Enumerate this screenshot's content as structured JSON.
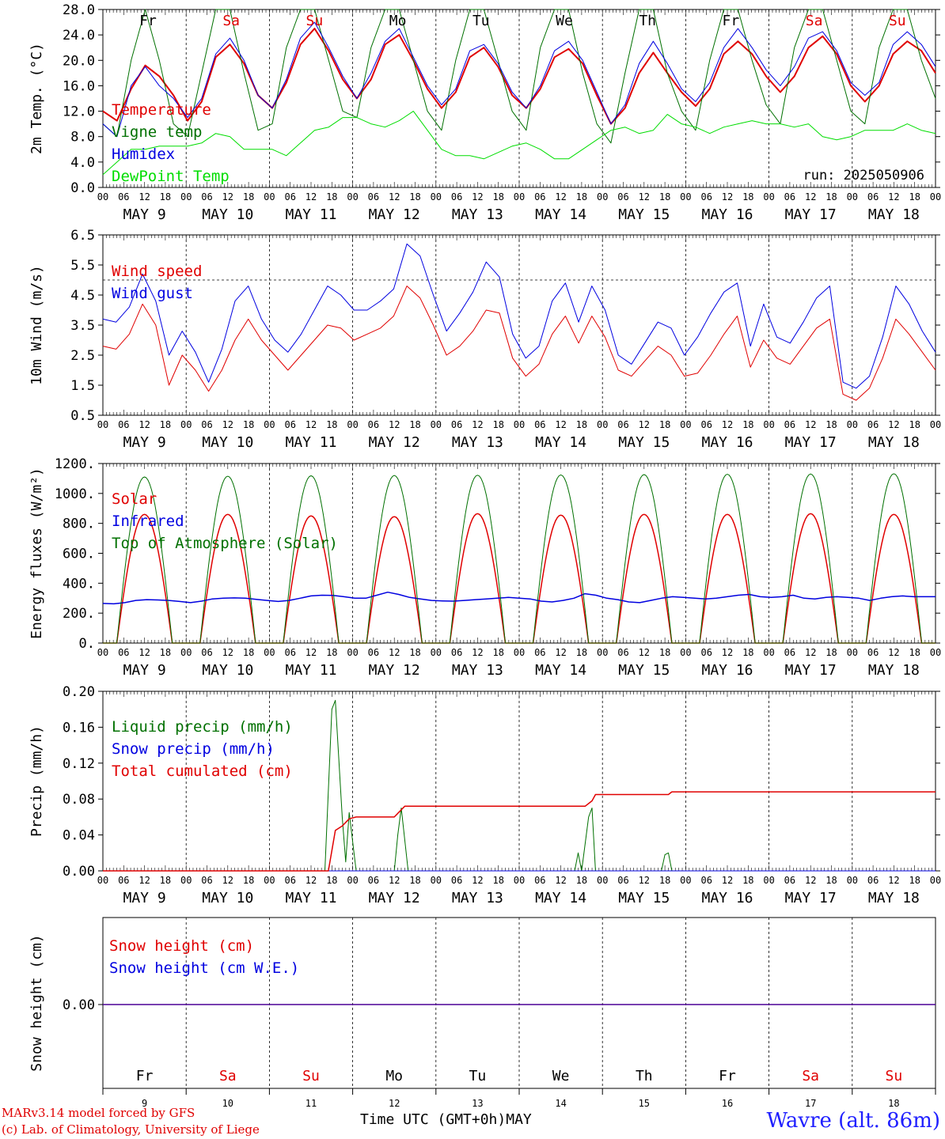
{
  "chart_data": [
    {
      "type": "line",
      "ylabel": "2m Temp. (°C)",
      "ylim": [
        0,
        28
      ],
      "yticks": [
        "0.0",
        "4.0",
        "8.0",
        "12.0",
        "16.0",
        "20.0",
        "24.0",
        "28.0"
      ],
      "xlim": [
        0,
        240
      ],
      "x_step_hours": 6,
      "annotation": "run: 2025050906",
      "legend_position": "left",
      "series": [
        {
          "name": "Temperature",
          "color": "#e00000",
          "width": 2,
          "values": [
            12,
            10.5,
            15.5,
            19.2,
            17.5,
            14.5,
            10.5,
            13.5,
            20.5,
            22.5,
            19.5,
            14.5,
            12.5,
            16.5,
            22.5,
            25,
            21.5,
            17,
            14,
            17,
            22.5,
            24,
            20,
            15.5,
            12.5,
            15,
            20.5,
            22,
            19,
            14.5,
            12.5,
            15.5,
            20.5,
            21.8,
            19.5,
            14.5,
            10,
            12.5,
            18,
            21.2,
            18,
            15,
            12.8,
            15.5,
            21,
            23,
            21,
            17.5,
            15,
            17.5,
            22,
            23.8,
            21,
            16,
            13.5,
            16,
            21,
            23,
            21.5,
            18
          ]
        },
        {
          "name": "Vigne temp",
          "color": "#007000",
          "width": 1,
          "values": [
            10,
            8,
            20,
            28,
            20,
            10,
            8,
            18,
            28,
            28,
            18,
            9,
            10,
            22,
            28,
            28,
            20,
            12,
            11,
            22,
            28,
            28,
            20,
            12,
            9,
            20,
            28,
            28,
            20,
            12,
            9,
            22,
            28,
            28,
            18,
            10,
            7,
            18,
            28,
            28,
            18,
            12,
            9,
            20,
            28,
            28,
            20,
            13,
            10,
            22,
            28,
            28,
            20,
            12,
            10,
            22,
            28,
            28,
            20,
            14
          ]
        },
        {
          "name": "Humidex",
          "color": "#0000e0",
          "width": 1,
          "values": [
            10,
            8,
            16,
            19,
            16,
            14,
            11,
            14,
            21,
            23.5,
            20,
            14.5,
            12.5,
            17,
            23.5,
            26,
            22,
            17.5,
            14,
            18,
            23,
            25,
            20.5,
            16,
            13,
            15.5,
            21.5,
            22.5,
            19.5,
            15,
            12.5,
            16,
            21.5,
            23,
            20,
            15,
            10,
            13,
            19.5,
            23,
            19.5,
            15.5,
            13.5,
            16.5,
            22,
            25,
            22,
            18.5,
            16,
            19,
            23.5,
            24.5,
            21.5,
            16.5,
            14.5,
            16.5,
            22.5,
            24.5,
            22.5,
            19
          ]
        },
        {
          "name": "DewPoint Temp",
          "color": "#00dd00",
          "width": 1,
          "values": [
            2,
            4,
            6,
            6,
            6.5,
            6.5,
            6.5,
            7,
            8.5,
            8,
            6,
            6,
            6,
            5,
            7,
            9,
            9.5,
            11,
            11,
            10,
            9.5,
            10.5,
            12,
            9,
            6,
            5,
            5,
            4.5,
            5.5,
            6.5,
            7,
            6,
            4.5,
            4.5,
            6,
            7.5,
            9,
            9.5,
            8.5,
            9,
            11.5,
            10,
            9.5,
            8.5,
            9.5,
            10,
            10.5,
            10,
            10,
            9.5,
            10,
            8,
            7.5,
            8,
            9,
            9,
            9,
            10,
            9,
            8.5
          ]
        }
      ]
    },
    {
      "type": "line",
      "ylabel": "10m Wind (m/s)",
      "ylim": [
        0.5,
        6.5
      ],
      "yticks": [
        "0.5",
        "1.5",
        "2.5",
        "3.5",
        "4.5",
        "5.5",
        "6.5"
      ],
      "reference_line": 5.0,
      "xlim": [
        0,
        240
      ],
      "x_step_hours": 6,
      "legend_position": "left",
      "series": [
        {
          "name": "Wind speed",
          "color": "#e00000",
          "width": 1,
          "values": [
            2.8,
            2.7,
            3.2,
            4.2,
            3.5,
            1.5,
            2.5,
            2.0,
            1.3,
            2.0,
            3.0,
            3.7,
            3.0,
            2.5,
            2.0,
            2.5,
            3.0,
            3.5,
            3.4,
            3.0,
            3.2,
            3.4,
            3.8,
            4.8,
            4.4,
            3.5,
            2.5,
            2.8,
            3.3,
            4.0,
            3.9,
            2.4,
            1.8,
            2.2,
            3.2,
            3.8,
            2.9,
            3.8,
            3.1,
            2.0,
            1.8,
            2.3,
            2.8,
            2.5,
            1.8,
            1.9,
            2.5,
            3.2,
            3.8,
            2.1,
            3.0,
            2.4,
            2.2,
            2.8,
            3.4,
            3.7,
            1.2,
            1.0,
            1.4,
            2.4,
            3.7,
            3.2,
            2.6,
            2.0
          ]
        },
        {
          "name": "Wind gust",
          "color": "#0000e0",
          "width": 1,
          "values": [
            3.7,
            3.6,
            4.1,
            5.2,
            4.3,
            2.5,
            3.3,
            2.6,
            1.6,
            2.7,
            4.3,
            4.8,
            3.7,
            3.0,
            2.6,
            3.2,
            4.0,
            4.8,
            4.5,
            4.0,
            4.0,
            4.3,
            4.7,
            6.2,
            5.8,
            4.5,
            3.3,
            3.9,
            4.6,
            5.6,
            5.1,
            3.2,
            2.4,
            2.8,
            4.3,
            4.9,
            3.6,
            4.8,
            4.0,
            2.5,
            2.2,
            2.9,
            3.6,
            3.4,
            2.5,
            3.1,
            3.9,
            4.6,
            4.9,
            2.8,
            4.2,
            3.1,
            2.9,
            3.6,
            4.4,
            4.8,
            1.6,
            1.4,
            1.8,
            3.1,
            4.8,
            4.2,
            3.3,
            2.6
          ]
        }
      ]
    },
    {
      "type": "line",
      "ylabel": "Energy fluxes (W/m²)",
      "ylim": [
        0,
        1200
      ],
      "yticks": [
        "0.",
        "200.",
        "400.",
        "600.",
        "800.",
        "1000.",
        "1200."
      ],
      "xlim": [
        0,
        240
      ],
      "x_step_hours": 6,
      "legend_position": "left",
      "series": [
        {
          "name": "Solar",
          "color": "#e00000",
          "width": 1.5,
          "daily_peak": [
            860,
            860,
            850,
            845,
            865,
            855,
            860,
            860,
            865,
            860
          ]
        },
        {
          "name": "Infrared",
          "color": "#0000e0",
          "width": 1.5,
          "values": [
            265,
            262,
            270,
            285,
            290,
            288,
            285,
            278,
            270,
            280,
            295,
            300,
            302,
            300,
            292,
            285,
            278,
            285,
            300,
            315,
            320,
            318,
            310,
            300,
            300,
            320,
            340,
            325,
            305,
            295,
            285,
            282,
            280,
            285,
            290,
            295,
            300,
            305,
            300,
            295,
            280,
            275,
            285,
            300,
            330,
            320,
            300,
            290,
            275,
            270,
            285,
            300,
            310,
            305,
            300,
            295,
            300,
            310,
            320,
            325,
            310,
            305,
            310,
            320,
            300,
            295,
            305,
            310,
            305,
            300,
            285,
            300,
            310,
            315,
            310,
            310,
            310
          ]
        },
        {
          "name": "Top of Atmosphere (Solar)",
          "color": "#007000",
          "width": 1,
          "daily_peak": [
            1110,
            1115,
            1118,
            1120,
            1122,
            1124,
            1126,
            1128,
            1130,
            1132
          ]
        }
      ]
    },
    {
      "type": "line",
      "ylabel": "Precip (mm/h)",
      "ylim": [
        0,
        0.2
      ],
      "yticks": [
        "0.00",
        "0.04",
        "0.08",
        "0.12",
        "0.16",
        "0.20"
      ],
      "xlim": [
        0,
        240
      ],
      "x_step_hours": 6,
      "legend_position": "left",
      "series": [
        {
          "name": "Liquid precip (mm/h)",
          "color": "#007000",
          "width": 1,
          "points": [
            [
              0,
              0
            ],
            [
              64,
              0
            ],
            [
              66,
              0.18
            ],
            [
              67,
              0.19
            ],
            [
              69,
              0.06
            ],
            [
              70,
              0.01
            ],
            [
              71,
              0.065
            ],
            [
              73,
              0
            ],
            [
              84,
              0
            ],
            [
              85,
              0.04
            ],
            [
              86,
              0.07
            ],
            [
              88,
              0
            ],
            [
              136,
              0
            ],
            [
              137,
              0.02
            ],
            [
              138,
              0
            ],
            [
              140,
              0.06
            ],
            [
              141,
              0.07
            ],
            [
              142,
              0
            ],
            [
              161,
              0
            ],
            [
              162,
              0.018
            ],
            [
              163,
              0.02
            ],
            [
              164,
              0
            ],
            [
              240,
              0
            ]
          ]
        },
        {
          "name": "Snow precip (mm/h)",
          "color": "#0000e0",
          "width": 1,
          "points": [
            [
              0,
              0
            ],
            [
              240,
              0
            ]
          ]
        },
        {
          "name": "Total cumulated (cm)",
          "color": "#e00000",
          "width": 1.5,
          "points": [
            [
              0,
              0
            ],
            [
              65,
              0
            ],
            [
              67,
              0.045
            ],
            [
              69,
              0.05
            ],
            [
              71,
              0.058
            ],
            [
              73,
              0.06
            ],
            [
              84,
              0.06
            ],
            [
              86,
              0.068
            ],
            [
              87,
              0.072
            ],
            [
              88,
              0.072
            ],
            [
              139,
              0.072
            ],
            [
              141,
              0.078
            ],
            [
              142,
              0.085
            ],
            [
              163,
              0.085
            ],
            [
              164,
              0.088
            ],
            [
              240,
              0.088
            ]
          ]
        }
      ]
    },
    {
      "type": "line",
      "ylabel": "Snow height (cm)",
      "yticks": [
        "0.00"
      ],
      "xlim": [
        0,
        240
      ],
      "legend_position": "left",
      "series": [
        {
          "name": "Snow height (cm)",
          "color": "#e00000",
          "width": 1.5,
          "values": [
            0,
            0
          ]
        },
        {
          "name": "Snow height (cm W.E.)",
          "color": "#0000e0",
          "width": 1,
          "values": [
            0,
            0
          ]
        }
      ]
    }
  ],
  "x_axis": {
    "hour_ticks": [
      "00",
      "06",
      "12",
      "18"
    ],
    "day_labels": [
      "MAY  9",
      "MAY 10",
      "MAY 11",
      "MAY 12",
      "MAY 13",
      "MAY 14",
      "MAY 15",
      "MAY 16",
      "MAY 17",
      "MAY 18"
    ],
    "weekdays": [
      "Fr",
      "Sa",
      "Su",
      "Mo",
      "Tu",
      "We",
      "Th",
      "Fr",
      "Sa",
      "Su"
    ],
    "weekday_colors": [
      "#000000",
      "#e00000",
      "#e00000",
      "#000000",
      "#000000",
      "#000000",
      "#000000",
      "#000000",
      "#e00000",
      "#e00000"
    ],
    "day_numbers": [
      "9",
      "10",
      "11",
      "12",
      "13",
      "14",
      "15",
      "16",
      "17",
      "18"
    ],
    "title": "Time UTC (GMT+0h)",
    "month": "MAY"
  },
  "footer": {
    "credit_line1": "MARv3.14 model forced by GFS",
    "credit_line2": "(c) Lab. of Climatology, University of Liege",
    "station": "Wavre (alt. 86m)"
  }
}
